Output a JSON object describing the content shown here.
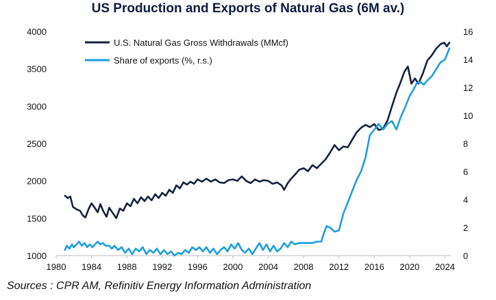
{
  "chart_data": {
    "type": "line",
    "title": "US Production and Exports of Natural Gas (6M av.)",
    "source": "Sources : CPR AM, Refinitiv Energy Information Administration",
    "x_ticks": [
      1980,
      1984,
      1988,
      1992,
      1996,
      2000,
      2004,
      2008,
      2012,
      2016,
      2020,
      2024
    ],
    "xlim": [
      1980,
      2024.5
    ],
    "y_left": {
      "ylim": [
        1000,
        4000
      ],
      "ticks": [
        1000,
        1500,
        2000,
        2500,
        3000,
        3500,
        4000
      ]
    },
    "y_right": {
      "ylim": [
        0,
        16
      ],
      "ticks": [
        0,
        2,
        4,
        6,
        8,
        10,
        12,
        14,
        16
      ]
    },
    "legend_position": "top-left",
    "series": [
      {
        "name": "U.S. Natural Gas Gross Withdrawals (MMcf)",
        "axis": "left",
        "color": "#14213d",
        "points": [
          [
            1981.0,
            1800
          ],
          [
            1981.3,
            1770
          ],
          [
            1981.6,
            1790
          ],
          [
            1981.9,
            1650
          ],
          [
            1982.3,
            1620
          ],
          [
            1982.7,
            1600
          ],
          [
            1983.0,
            1540
          ],
          [
            1983.3,
            1510
          ],
          [
            1983.7,
            1630
          ],
          [
            1984.0,
            1700
          ],
          [
            1984.3,
            1650
          ],
          [
            1984.7,
            1580
          ],
          [
            1985.0,
            1690
          ],
          [
            1985.3,
            1600
          ],
          [
            1985.7,
            1520
          ],
          [
            1986.0,
            1640
          ],
          [
            1986.4,
            1570
          ],
          [
            1986.8,
            1500
          ],
          [
            1987.2,
            1630
          ],
          [
            1987.6,
            1600
          ],
          [
            1988.0,
            1700
          ],
          [
            1988.4,
            1660
          ],
          [
            1988.8,
            1760
          ],
          [
            1989.2,
            1700
          ],
          [
            1989.6,
            1780
          ],
          [
            1990.0,
            1730
          ],
          [
            1990.4,
            1790
          ],
          [
            1990.8,
            1740
          ],
          [
            1991.2,
            1820
          ],
          [
            1991.6,
            1770
          ],
          [
            1992.0,
            1840
          ],
          [
            1992.4,
            1800
          ],
          [
            1992.8,
            1880
          ],
          [
            1993.2,
            1840
          ],
          [
            1993.6,
            1940
          ],
          [
            1994.0,
            1900
          ],
          [
            1994.4,
            1980
          ],
          [
            1994.8,
            1950
          ],
          [
            1995.2,
            1990
          ],
          [
            1995.6,
            1960
          ],
          [
            1996.0,
            2020
          ],
          [
            1996.5,
            1990
          ],
          [
            1997.0,
            2030
          ],
          [
            1997.5,
            1990
          ],
          [
            1998.0,
            2020
          ],
          [
            1998.5,
            1980
          ],
          [
            1999.0,
            1970
          ],
          [
            1999.5,
            2010
          ],
          [
            2000.0,
            2020
          ],
          [
            2000.5,
            2000
          ],
          [
            2001.0,
            2060
          ],
          [
            2001.5,
            2000
          ],
          [
            2002.0,
            1970
          ],
          [
            2002.5,
            2020
          ],
          [
            2003.0,
            1990
          ],
          [
            2003.5,
            2010
          ],
          [
            2004.0,
            2000
          ],
          [
            2004.5,
            1960
          ],
          [
            2005.0,
            1980
          ],
          [
            2005.5,
            1940
          ],
          [
            2005.8,
            1880
          ],
          [
            2006.2,
            1970
          ],
          [
            2006.6,
            2030
          ],
          [
            2007.0,
            2080
          ],
          [
            2007.5,
            2150
          ],
          [
            2008.0,
            2170
          ],
          [
            2008.5,
            2130
          ],
          [
            2009.0,
            2210
          ],
          [
            2009.5,
            2170
          ],
          [
            2010.0,
            2230
          ],
          [
            2010.5,
            2290
          ],
          [
            2011.0,
            2380
          ],
          [
            2011.5,
            2480
          ],
          [
            2012.0,
            2410
          ],
          [
            2012.5,
            2460
          ],
          [
            2013.0,
            2450
          ],
          [
            2013.5,
            2550
          ],
          [
            2014.0,
            2650
          ],
          [
            2014.5,
            2710
          ],
          [
            2015.0,
            2750
          ],
          [
            2015.5,
            2720
          ],
          [
            2016.0,
            2760
          ],
          [
            2016.5,
            2680
          ],
          [
            2017.0,
            2700
          ],
          [
            2017.5,
            2810
          ],
          [
            2018.0,
            3000
          ],
          [
            2018.5,
            3180
          ],
          [
            2019.0,
            3330
          ],
          [
            2019.4,
            3460
          ],
          [
            2019.8,
            3530
          ],
          [
            2020.2,
            3300
          ],
          [
            2020.6,
            3370
          ],
          [
            2021.0,
            3300
          ],
          [
            2021.5,
            3440
          ],
          [
            2022.0,
            3610
          ],
          [
            2022.5,
            3680
          ],
          [
            2023.0,
            3770
          ],
          [
            2023.5,
            3830
          ],
          [
            2023.9,
            3850
          ],
          [
            2024.2,
            3800
          ],
          [
            2024.5,
            3850
          ]
        ]
      },
      {
        "name": "Share of exports (%, r.s.)",
        "axis": "right",
        "color": "#1a9ee0",
        "points": [
          [
            1981.0,
            0.4
          ],
          [
            1981.2,
            0.7
          ],
          [
            1981.5,
            0.5
          ],
          [
            1981.8,
            0.8
          ],
          [
            1982.0,
            0.6
          ],
          [
            1982.3,
            0.8
          ],
          [
            1982.6,
            1.0
          ],
          [
            1982.9,
            0.7
          ],
          [
            1983.2,
            0.9
          ],
          [
            1983.5,
            0.6
          ],
          [
            1983.8,
            0.8
          ],
          [
            1984.1,
            0.6
          ],
          [
            1984.4,
            0.8
          ],
          [
            1984.7,
            1.0
          ],
          [
            1985.0,
            0.8
          ],
          [
            1985.3,
            0.9
          ],
          [
            1985.6,
            0.7
          ],
          [
            1986.0,
            0.7
          ],
          [
            1986.3,
            0.5
          ],
          [
            1986.6,
            0.7
          ],
          [
            1987.0,
            0.4
          ],
          [
            1987.4,
            0.6
          ],
          [
            1987.8,
            0.2
          ],
          [
            1988.2,
            0.5
          ],
          [
            1988.6,
            0.1
          ],
          [
            1989.0,
            0.5
          ],
          [
            1989.4,
            0.3
          ],
          [
            1989.8,
            0.6
          ],
          [
            1990.2,
            0.1
          ],
          [
            1990.6,
            0.4
          ],
          [
            1991.0,
            0.2
          ],
          [
            1991.4,
            0.5
          ],
          [
            1991.8,
            0.1
          ],
          [
            1992.2,
            0.4
          ],
          [
            1992.6,
            0.1
          ],
          [
            1993.0,
            0.3
          ],
          [
            1993.4,
            0.0
          ],
          [
            1993.8,
            0.2
          ],
          [
            1994.2,
            0.1
          ],
          [
            1994.6,
            0.4
          ],
          [
            1995.0,
            0.2
          ],
          [
            1995.4,
            0.6
          ],
          [
            1995.8,
            0.4
          ],
          [
            1996.2,
            0.6
          ],
          [
            1996.6,
            0.3
          ],
          [
            1997.0,
            0.6
          ],
          [
            1997.4,
            0.2
          ],
          [
            1997.8,
            0.5
          ],
          [
            1998.2,
            0.1
          ],
          [
            1998.6,
            0.4
          ],
          [
            1999.0,
            0.6
          ],
          [
            1999.4,
            0.3
          ],
          [
            1999.8,
            0.8
          ],
          [
            2000.2,
            0.5
          ],
          [
            2000.6,
            0.9
          ],
          [
            2001.0,
            0.4
          ],
          [
            2001.4,
            0.2
          ],
          [
            2001.8,
            0.5
          ],
          [
            2002.2,
            0.1
          ],
          [
            2002.6,
            0.5
          ],
          [
            2003.0,
            0.9
          ],
          [
            2003.4,
            0.4
          ],
          [
            2003.8,
            0.8
          ],
          [
            2004.2,
            0.3
          ],
          [
            2004.6,
            0.7
          ],
          [
            2005.0,
            0.3
          ],
          [
            2005.4,
            0.5
          ],
          [
            2005.8,
            0.9
          ],
          [
            2006.2,
            0.6
          ],
          [
            2006.6,
            1.0
          ],
          [
            2007.0,
            0.8
          ],
          [
            2007.5,
            0.9
          ],
          [
            2008.0,
            0.9
          ],
          [
            2008.5,
            0.9
          ],
          [
            2009.0,
            0.9
          ],
          [
            2009.5,
            1.0
          ],
          [
            2010.0,
            1.0
          ],
          [
            2010.3,
            1.6
          ],
          [
            2010.6,
            2.1
          ],
          [
            2011.0,
            2.0
          ],
          [
            2011.5,
            1.7
          ],
          [
            2012.0,
            1.8
          ],
          [
            2012.5,
            3.0
          ],
          [
            2013.0,
            3.8
          ],
          [
            2013.5,
            4.6
          ],
          [
            2014.0,
            5.4
          ],
          [
            2014.5,
            6.0
          ],
          [
            2015.0,
            7.0
          ],
          [
            2015.5,
            8.6
          ],
          [
            2016.0,
            9.0
          ],
          [
            2016.5,
            9.4
          ],
          [
            2017.0,
            9.0
          ],
          [
            2017.5,
            9.4
          ],
          [
            2018.0,
            9.6
          ],
          [
            2018.5,
            9.0
          ],
          [
            2019.0,
            9.9
          ],
          [
            2019.5,
            10.6
          ],
          [
            2020.0,
            11.4
          ],
          [
            2020.4,
            11.8
          ],
          [
            2020.8,
            12.3
          ],
          [
            2021.2,
            12.4
          ],
          [
            2021.6,
            12.2
          ],
          [
            2022.0,
            12.5
          ],
          [
            2022.5,
            12.8
          ],
          [
            2023.0,
            13.3
          ],
          [
            2023.5,
            13.8
          ],
          [
            2024.0,
            14.0
          ],
          [
            2024.5,
            14.8
          ]
        ]
      }
    ]
  }
}
